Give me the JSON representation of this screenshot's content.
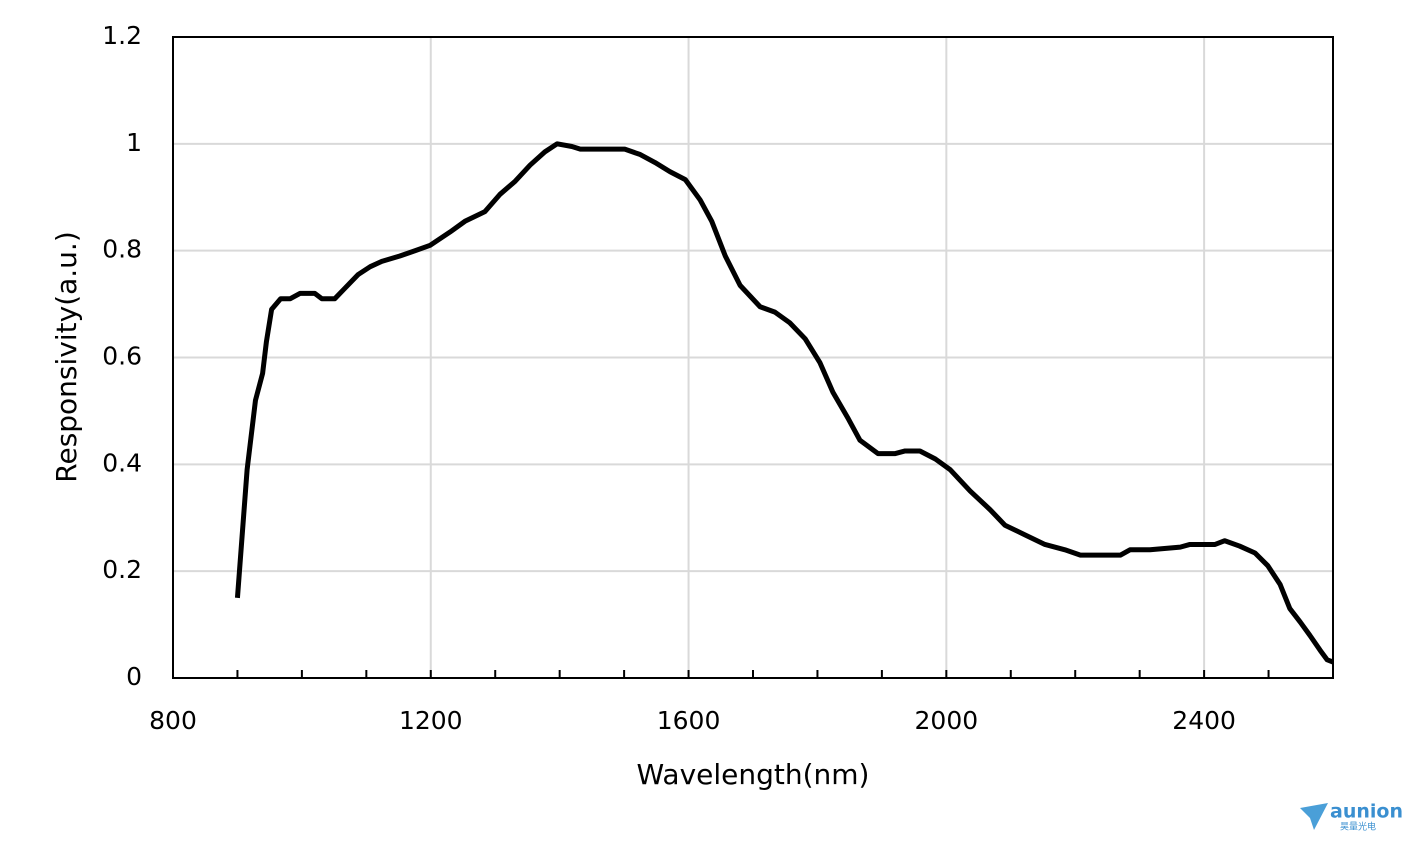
{
  "chart_data": {
    "type": "line",
    "x_label": "Wavelength(nm)",
    "y_label": "Responsivity(a.u.)",
    "x": [
      900,
      915,
      928,
      939,
      945,
      953,
      967,
      982,
      997,
      1020,
      1031,
      1051,
      1067,
      1087,
      1106,
      1124,
      1152,
      1176,
      1199,
      1230,
      1253,
      1284,
      1307,
      1331,
      1354,
      1377,
      1396,
      1419,
      1432,
      1501,
      1525,
      1548,
      1571,
      1595,
      1618,
      1636,
      1657,
      1680,
      1711,
      1734,
      1757,
      1781,
      1804,
      1824,
      1848,
      1866,
      1894,
      1920,
      1936,
      1959,
      1983,
      2006,
      2037,
      2068,
      2091,
      2122,
      2153,
      2184,
      2208,
      2270,
      2285,
      2316,
      2363,
      2378,
      2417,
      2432,
      2455,
      2479,
      2499,
      2518,
      2533,
      2549,
      2564,
      2580,
      2591,
      2600
    ],
    "series": [
      {
        "color": "#000000",
        "values": [
          0.15,
          0.39,
          0.52,
          0.57,
          0.63,
          0.69,
          0.71,
          0.71,
          0.72,
          0.72,
          0.71,
          0.71,
          0.73,
          0.755,
          0.77,
          0.78,
          0.79,
          0.8,
          0.81,
          0.835,
          0.855,
          0.873,
          0.905,
          0.93,
          0.96,
          0.985,
          1.0,
          0.995,
          0.99,
          0.99,
          0.98,
          0.965,
          0.948,
          0.933,
          0.895,
          0.855,
          0.79,
          0.735,
          0.695,
          0.685,
          0.665,
          0.635,
          0.59,
          0.535,
          0.485,
          0.445,
          0.42,
          0.42,
          0.425,
          0.425,
          0.41,
          0.39,
          0.35,
          0.315,
          0.286,
          0.268,
          0.25,
          0.24,
          0.23,
          0.23,
          0.24,
          0.24,
          0.245,
          0.25,
          0.25,
          0.257,
          0.247,
          0.234,
          0.21,
          0.175,
          0.13,
          0.105,
          0.08,
          0.052,
          0.034,
          0.03
        ]
      }
    ],
    "xlim": [
      800,
      2600
    ],
    "xticks": [
      800,
      1200,
      1600,
      2000,
      2400
    ],
    "xminorticks": [
      900,
      1000,
      1100,
      1300,
      1400,
      1500,
      1700,
      1800,
      1900,
      2100,
      2200,
      2300,
      2500
    ],
    "ylim": [
      0,
      1.2
    ],
    "yticks": [
      0,
      0.2,
      0.4,
      0.6,
      0.8,
      1,
      1.2
    ],
    "grid": true
  },
  "logo": {
    "name": "aunion",
    "subtitle": "昊量光电"
  }
}
